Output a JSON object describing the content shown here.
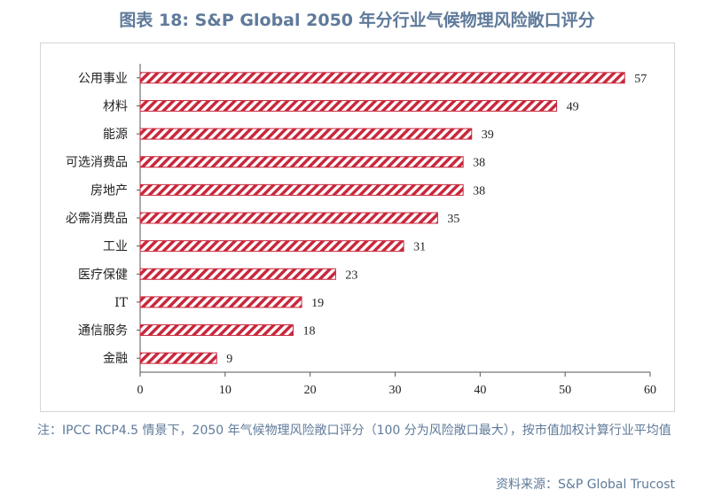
{
  "chart_data": {
    "type": "bar",
    "orientation": "horizontal",
    "title": "图表 18: S&P Global 2050 年分行业气候物理风险敞口评分",
    "categories": [
      "公用事业",
      "材料",
      "能源",
      "可选消费品",
      "房地产",
      "必需消费品",
      "工业",
      "医疗保健",
      "IT",
      "通信服务",
      "金融"
    ],
    "values": [
      57,
      49,
      39,
      38,
      38,
      35,
      31,
      23,
      19,
      18,
      9
    ],
    "xlim": [
      0,
      60
    ],
    "xticks": [
      0,
      10,
      20,
      30,
      40,
      50,
      60
    ],
    "grid": false,
    "bar_color": "#c8283c",
    "bar_pattern": "diagonal-stripes"
  },
  "note": "注：IPCC RCP4.5 情景下，2050 年气候物理风险敞口评分（100 分为风险敞口最大），按市值加权计算行业平均值",
  "source": "资料来源：S&P Global Trucost",
  "colors": {
    "title": "#5f7a9a",
    "bar": "#c8283c",
    "axis": "#555555"
  }
}
